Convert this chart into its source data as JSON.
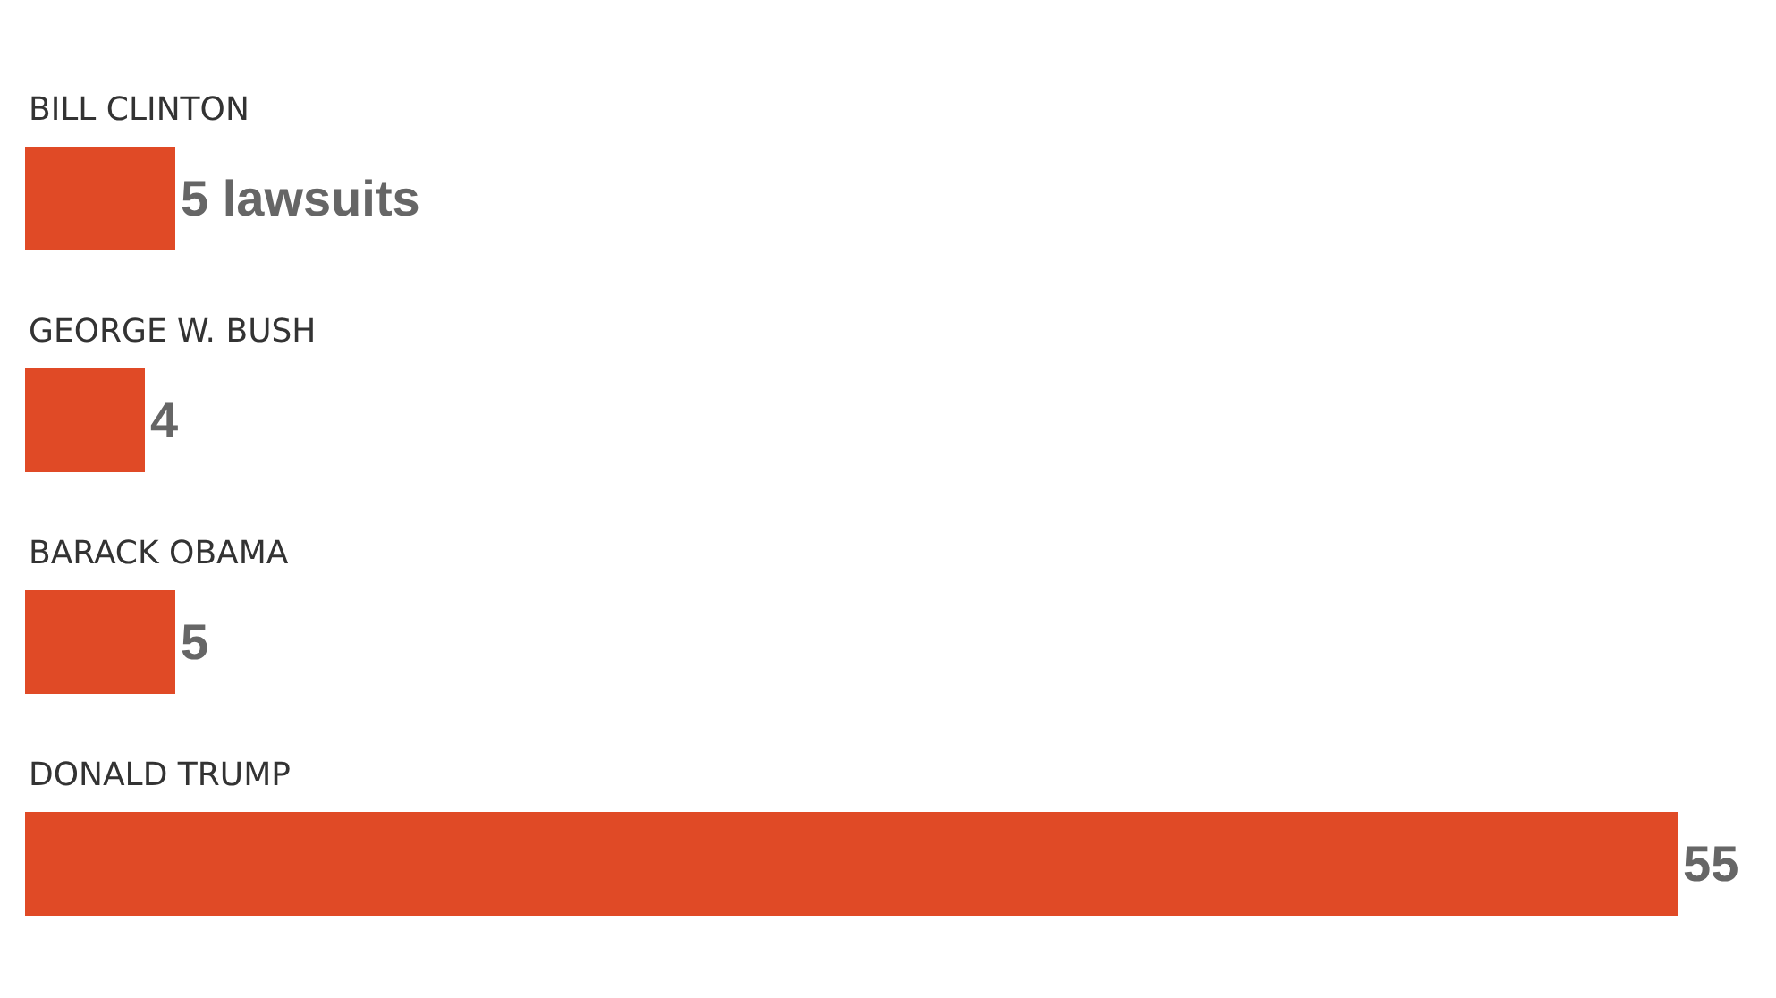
{
  "chart_data": {
    "type": "bar",
    "orientation": "horizontal",
    "categories": [
      "BILL CLINTON",
      "GEORGE W. BUSH",
      "BARACK OBAMA",
      "DONALD TRUMP"
    ],
    "values": [
      5,
      4,
      5,
      55
    ],
    "value_labels": [
      "5 lawsuits",
      "4",
      "5",
      "55"
    ],
    "color": "#e04a26",
    "xlim": [
      0,
      58
    ],
    "grid": false,
    "legend": false
  }
}
